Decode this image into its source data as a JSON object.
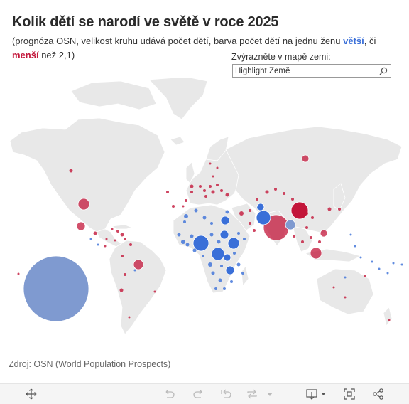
{
  "header": {
    "title": "Kolik dětí se narodí ve světě v roce 2025",
    "subtitle_part1": "(prognóza OSN, velikost kruhu udává počet dětí, barva počet dětí na jednu ženu ",
    "subtitle_bigger": "větší",
    "subtitle_part2": ", či ",
    "subtitle_smaller": "menší",
    "subtitle_part3": " než 2,1)"
  },
  "highlight": {
    "label": "Zvýrazněte v mapě zemi:",
    "placeholder": "Highlight Země"
  },
  "source": "Zdroj: OSN (World Population Prospects)",
  "colors": {
    "above_replacement": "#3a6fd8",
    "below_replacement": "#c3163a",
    "highlight_country": "#7f9ad0",
    "land": "#e8e8e8"
  },
  "toolbar": {
    "icons": [
      "move-icon",
      "undo-icon",
      "redo-icon",
      "revert-icon",
      "refresh-icon",
      "pause-icon",
      "download-icon",
      "fullscreen-icon",
      "share-icon"
    ]
  }
}
